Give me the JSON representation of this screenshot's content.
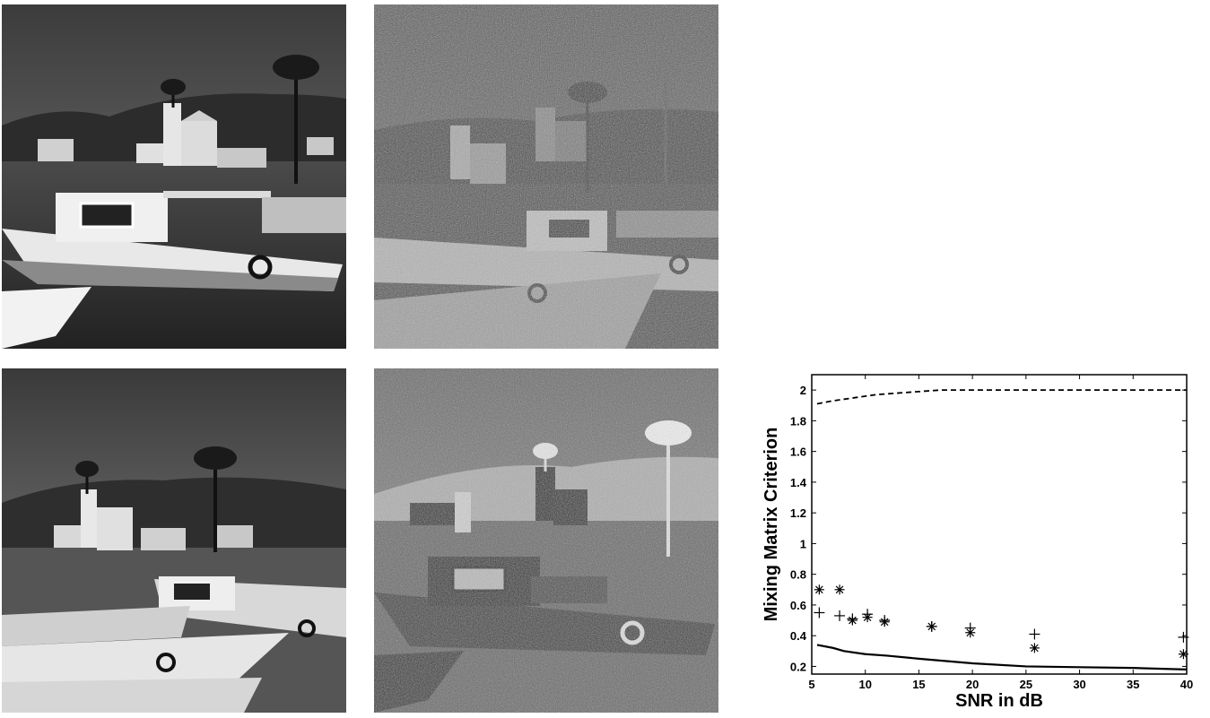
{
  "images": [
    {
      "name": "source-image-1"
    },
    {
      "name": "mixed-image-1"
    },
    {
      "name": "source-image-2"
    },
    {
      "name": "mixed-image-2"
    }
  ],
  "chart_data": {
    "type": "line",
    "title": "",
    "xlabel": "SNR in dB",
    "ylabel": "Mixing Matrix Criterion",
    "xlim": [
      5,
      40
    ],
    "ylim": [
      0.15,
      2.1
    ],
    "xticks": [
      5,
      10,
      15,
      20,
      25,
      30,
      35,
      40
    ],
    "yticks": [
      0.2,
      0.4,
      0.6,
      0.8,
      1,
      1.2,
      1.4,
      1.6,
      1.8,
      2
    ],
    "grid": false,
    "series": [
      {
        "style": "dashed-line",
        "x": [
          5.5,
          7,
          9,
          11,
          13,
          15,
          17,
          20,
          25,
          30,
          35,
          40
        ],
        "y": [
          1.91,
          1.93,
          1.95,
          1.97,
          1.98,
          1.99,
          2.0,
          2.0,
          2.0,
          2.0,
          2.0,
          2.0
        ]
      },
      {
        "style": "solid-line",
        "x": [
          5.5,
          7,
          8,
          10,
          12,
          15,
          20,
          25,
          30,
          35,
          40
        ],
        "y": [
          0.34,
          0.32,
          0.3,
          0.28,
          0.27,
          0.25,
          0.22,
          0.2,
          0.195,
          0.19,
          0.18
        ],
        "marker": "none"
      },
      {
        "style": "asterisk-marker",
        "x": [
          5.7,
          7.6,
          8.8,
          10.2,
          11.8,
          16.2,
          19.8,
          25.8,
          39.7
        ],
        "y": [
          0.7,
          0.7,
          0.5,
          0.52,
          0.49,
          0.46,
          0.42,
          0.32,
          0.28
        ]
      },
      {
        "style": "plus-marker",
        "x": [
          5.7,
          7.6,
          8.8,
          10.2,
          11.8,
          16.2,
          19.8,
          25.8,
          39.7
        ],
        "y": [
          0.55,
          0.53,
          0.51,
          0.54,
          0.5,
          0.46,
          0.45,
          0.41,
          0.39
        ]
      }
    ],
    "colors": {
      "line": "#000000",
      "background": "#ffffff"
    }
  }
}
